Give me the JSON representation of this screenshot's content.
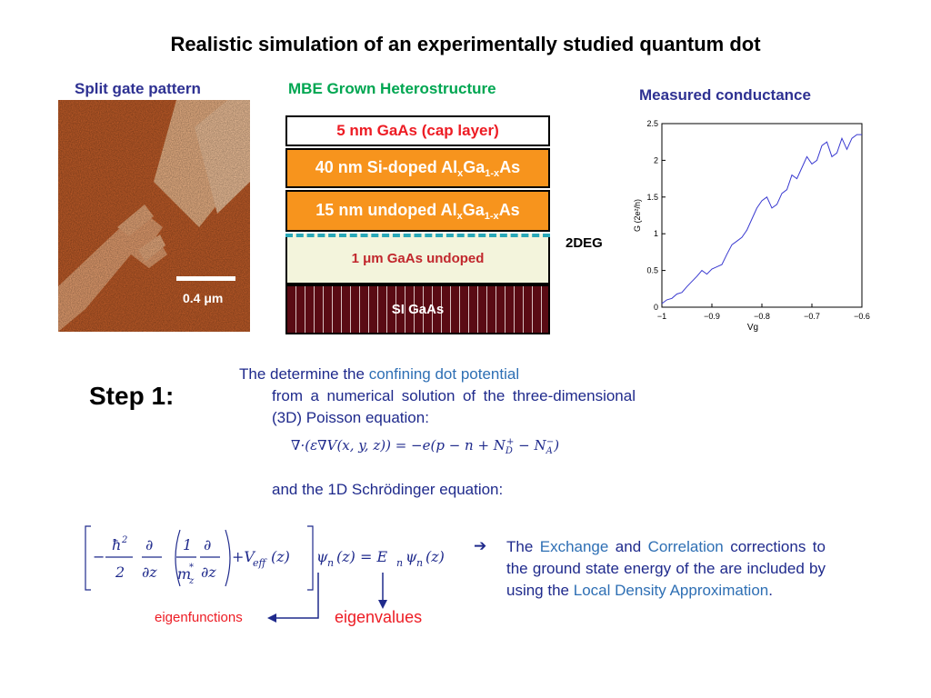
{
  "title": "Realistic simulation of an experimentally studied quantum dot",
  "captions": {
    "split_gate": "Split gate pattern",
    "mbe": "MBE Grown Heterostructure",
    "conductance": "Measured conductance"
  },
  "split_gate": {
    "scale_label": "0.4 μm"
  },
  "heterostructure": {
    "cap": "5 nm GaAs (cap layer)",
    "si_doped_prefix": "40 nm Si-doped Al",
    "undoped_prefix": "15 nm undoped Al",
    "sub_x": "x",
    "ga": "Ga",
    "sub_1x": "1-x",
    "as": "As",
    "gaas_undoped": "1 μm GaAs undoped",
    "si_gaas": "SI GaAs",
    "deg_label": "2DEG"
  },
  "step": {
    "label": "Step 1:",
    "para1_w1": "The determine the",
    "para1_hl": "confining dot potential",
    "para1_rest": "from a numerical solution of the three-dimensional (3D) Poisson equation:",
    "poisson": "∇·(ε∇V(x, y, z)) = −e(p − n + N",
    "poisson_d": "D",
    "poisson_mid": " − N",
    "poisson_a": "A",
    "poisson_end": ")",
    "para2": "and the 1D Schrödinger equation:",
    "eigenfunctions": "eigenfunctions",
    "eigenvalues": "eigenvalues",
    "note_p1": "The",
    "note_hl1": "Exchange",
    "note_p2": "and",
    "note_hl2": "Correlation",
    "note_p3": "corrections to the ground state energy of the are included by using the",
    "note_hl3": "Local Density Approximation",
    "note_p4": "."
  },
  "chart_data": {
    "type": "line",
    "title": "",
    "xlabel": "Vg",
    "ylabel": "G (2e²/h)",
    "xlim": [
      -1.0,
      -0.6
    ],
    "ylim": [
      0,
      2.5
    ],
    "xticks": [
      "−1",
      "−0.9",
      "−0.8",
      "−0.7",
      "−0.6"
    ],
    "yticks": [
      "0",
      "0.5",
      "1",
      "1.5",
      "2",
      "2.5"
    ],
    "grid": false,
    "series": [
      {
        "color": "#3a3ad0",
        "x": [
          -1.0,
          -0.99,
          -0.98,
          -0.97,
          -0.96,
          -0.95,
          -0.94,
          -0.93,
          -0.92,
          -0.91,
          -0.9,
          -0.89,
          -0.88,
          -0.87,
          -0.86,
          -0.85,
          -0.84,
          -0.83,
          -0.82,
          -0.81,
          -0.8,
          -0.79,
          -0.78,
          -0.77,
          -0.76,
          -0.75,
          -0.74,
          -0.73,
          -0.72,
          -0.71,
          -0.7,
          -0.69,
          -0.68,
          -0.67,
          -0.66,
          -0.65,
          -0.64,
          -0.63,
          -0.62,
          -0.61,
          -0.6
        ],
        "y": [
          0.05,
          0.1,
          0.12,
          0.18,
          0.2,
          0.28,
          0.35,
          0.42,
          0.5,
          0.45,
          0.52,
          0.55,
          0.58,
          0.72,
          0.85,
          0.9,
          0.95,
          1.05,
          1.2,
          1.35,
          1.45,
          1.5,
          1.35,
          1.4,
          1.55,
          1.6,
          1.8,
          1.75,
          1.9,
          2.05,
          1.95,
          2.0,
          2.2,
          2.25,
          2.05,
          2.1,
          2.3,
          2.15,
          2.3,
          2.35,
          2.35
        ]
      }
    ]
  }
}
